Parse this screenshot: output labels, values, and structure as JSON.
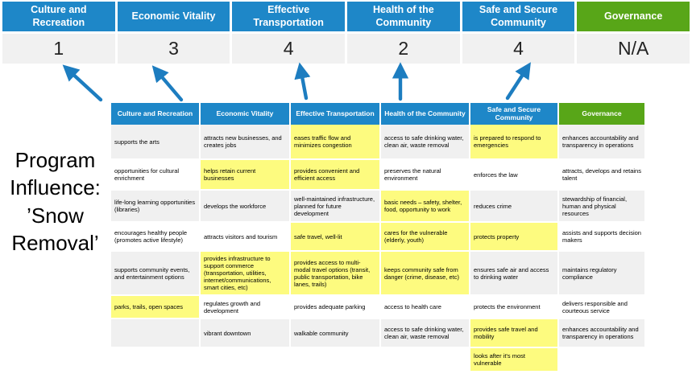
{
  "program_label": "Program\nInfluence:\n’Snow\nRemoval’",
  "colors": {
    "header_blue": "#1e87c8",
    "governance_green": "#58a618",
    "highlight_yellow": "#fdfb7f",
    "row_gray": "#f0f0f0",
    "score_bg": "#f1f1f1",
    "arrow_blue": "#1d7dc0"
  },
  "summary": {
    "categories": [
      {
        "label": "Culture and Recreation",
        "score": "1",
        "governance": false
      },
      {
        "label": "Economic Vitality",
        "score": "3",
        "governance": false
      },
      {
        "label": "Effective Transportation",
        "score": "4",
        "governance": false
      },
      {
        "label": "Health of the Community",
        "score": "2",
        "governance": false
      },
      {
        "label": "Safe and Secure Community",
        "score": "4",
        "governance": false
      },
      {
        "label": "Governance",
        "score": "N/A",
        "governance": true
      }
    ]
  },
  "matrix": {
    "columns": [
      "Culture and Recreation",
      "Economic Vitality",
      "Effective Transportation",
      "Health of the Community",
      "Safe and Secure Community",
      "Governance"
    ],
    "rows": [
      [
        {
          "text": "supports the arts",
          "highlight": false
        },
        {
          "text": "attracts new businesses, and creates jobs",
          "highlight": false
        },
        {
          "text": "eases traffic flow and minimizes congestion",
          "highlight": true
        },
        {
          "text": "access to safe drinking water, clean air, waste removal",
          "highlight": false
        },
        {
          "text": "is prepared to respond to emergencies",
          "highlight": true
        },
        {
          "text": "enhances accountability and transparency in operations",
          "highlight": false
        }
      ],
      [
        {
          "text": "opportunities for cultural enrichment",
          "highlight": false
        },
        {
          "text": "helps retain current businesses",
          "highlight": true
        },
        {
          "text": "provides convenient and efficient access",
          "highlight": true
        },
        {
          "text": "preserves the natural environment",
          "highlight": false
        },
        {
          "text": "enforces the law",
          "highlight": false
        },
        {
          "text": "attracts, develops and retains talent",
          "highlight": false
        }
      ],
      [
        {
          "text": "life-long learning opportunities (libraries)",
          "highlight": false
        },
        {
          "text": "develops the workforce",
          "highlight": false
        },
        {
          "text": "well-maintained infrastructure, planned for future development",
          "highlight": false
        },
        {
          "text": "basic needs – safety, shelter, food, opportunity to work",
          "highlight": true
        },
        {
          "text": "reduces crime",
          "highlight": false
        },
        {
          "text": "stewardship of financial, human and physical resources",
          "highlight": false
        }
      ],
      [
        {
          "text": "encourages healthy people (promotes active lifestyle)",
          "highlight": false
        },
        {
          "text": "attracts visitors and tourism",
          "highlight": false
        },
        {
          "text": "safe travel, well-lit",
          "highlight": true
        },
        {
          "text": "cares for the vulnerable (elderly, youth)",
          "highlight": true
        },
        {
          "text": "protects property",
          "highlight": true
        },
        {
          "text": "assists and supports decision makers",
          "highlight": false
        }
      ],
      [
        {
          "text": "supports community events, and entertainment options",
          "highlight": false
        },
        {
          "text": "provides infrastructure to support commerce (transportation, utilities, internet/communications, smart cities, etc)",
          "highlight": true
        },
        {
          "text": "provides access to multi-modal travel options (transit, public transportation, bike lanes, trails)",
          "highlight": true
        },
        {
          "text": "keeps community safe from danger (crime, disease, etc)",
          "highlight": true
        },
        {
          "text": "ensures safe air and access to drinking water",
          "highlight": false
        },
        {
          "text": "maintains regulatory compliance",
          "highlight": false
        }
      ],
      [
        {
          "text": "parks, trails, open spaces",
          "highlight": true
        },
        {
          "text": "regulates growth and development",
          "highlight": false
        },
        {
          "text": "provides adequate parking",
          "highlight": false
        },
        {
          "text": "access to health care",
          "highlight": false
        },
        {
          "text": "protects the environment",
          "highlight": false
        },
        {
          "text": "delivers responsible and courteous service",
          "highlight": false
        }
      ],
      [
        {
          "text": "",
          "highlight": false
        },
        {
          "text": "vibrant downtown",
          "highlight": false
        },
        {
          "text": "walkable community",
          "highlight": false
        },
        {
          "text": "access to safe drinking water, clean air, waste removal",
          "highlight": false
        },
        {
          "text": "provides safe travel and mobility",
          "highlight": true
        },
        {
          "text": "enhances accountability and transparency in operations",
          "highlight": false
        }
      ],
      [
        {
          "text": "",
          "highlight": false
        },
        {
          "text": "",
          "highlight": false
        },
        {
          "text": "",
          "highlight": false
        },
        {
          "text": "",
          "highlight": false
        },
        {
          "text": "looks after it's most vulnerable",
          "highlight": true
        },
        {
          "text": "",
          "highlight": false
        }
      ]
    ]
  }
}
